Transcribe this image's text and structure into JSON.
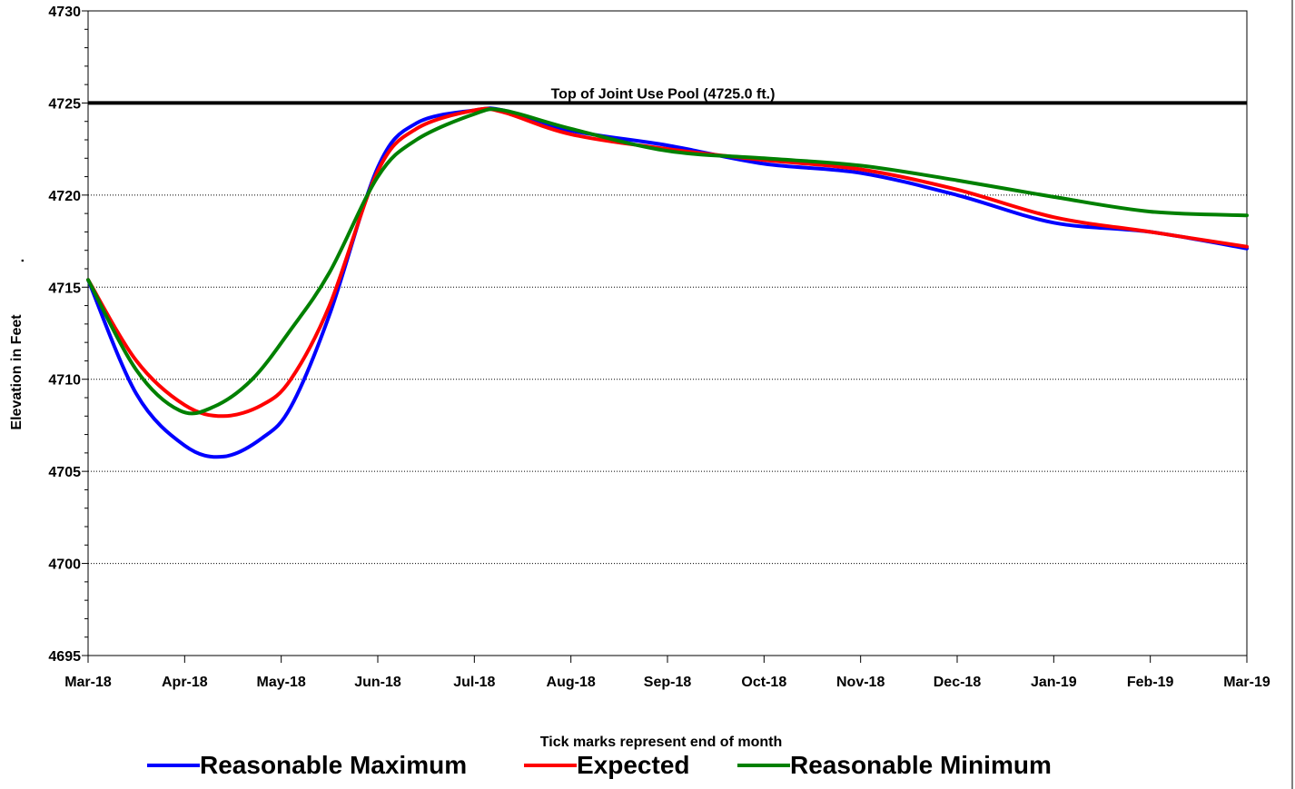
{
  "chart_data": {
    "type": "line",
    "title": "",
    "xlabel": "Tick marks represent end of month",
    "ylabel": "Elevation in Feet",
    "ylim": [
      4695,
      4730
    ],
    "yticks": [
      4695,
      4700,
      4705,
      4710,
      4715,
      4720,
      4725,
      4730
    ],
    "x_categories": [
      "Mar-18",
      "Apr-18",
      "May-18",
      "Jun-18",
      "Jul-18",
      "Aug-18",
      "Sep-18",
      "Oct-18",
      "Nov-18",
      "Dec-18",
      "Jan-19",
      "Feb-19",
      "Mar-19"
    ],
    "grid": "horizontal dotted",
    "legend_position": "bottom",
    "reference_line": {
      "value": 4725,
      "label": "Top of Joint Use Pool (4725.0 ft.)",
      "color": "#000000"
    },
    "series": [
      {
        "name": "Reasonable Maximum",
        "color": "#0000ff",
        "points": [
          [
            0,
            4715.4
          ],
          [
            0.5,
            4709.2
          ],
          [
            1,
            4706.4
          ],
          [
            1.4,
            4705.8
          ],
          [
            1.8,
            4706.8
          ],
          [
            2.1,
            4708.5
          ],
          [
            2.5,
            4713.5
          ],
          [
            3,
            4721.5
          ],
          [
            3.4,
            4723.9
          ],
          [
            4,
            4724.6
          ],
          [
            4.3,
            4724.6
          ],
          [
            5,
            4723.5
          ],
          [
            6,
            4722.7
          ],
          [
            7,
            4721.7
          ],
          [
            8,
            4721.2
          ],
          [
            9,
            4720.0
          ],
          [
            10,
            4718.5
          ],
          [
            11,
            4718.0
          ],
          [
            12,
            4717.1
          ]
        ]
      },
      {
        "name": "Expected",
        "color": "#ff0000",
        "points": [
          [
            0,
            4715.4
          ],
          [
            0.5,
            4711.0
          ],
          [
            1,
            4708.6
          ],
          [
            1.4,
            4708.0
          ],
          [
            1.8,
            4708.6
          ],
          [
            2.1,
            4710.0
          ],
          [
            2.5,
            4714.0
          ],
          [
            3,
            4721.3
          ],
          [
            3.4,
            4723.6
          ],
          [
            4,
            4724.6
          ],
          [
            4.3,
            4724.5
          ],
          [
            5,
            4723.3
          ],
          [
            6,
            4722.5
          ],
          [
            7,
            4721.9
          ],
          [
            8,
            4721.4
          ],
          [
            9,
            4720.3
          ],
          [
            10,
            4718.8
          ],
          [
            11,
            4718.0
          ],
          [
            12,
            4717.2
          ]
        ]
      },
      {
        "name": "Reasonable Minimum",
        "color": "#008000",
        "points": [
          [
            0,
            4715.4
          ],
          [
            0.5,
            4710.5
          ],
          [
            0.95,
            4708.3
          ],
          [
            1.3,
            4708.5
          ],
          [
            1.7,
            4710.0
          ],
          [
            2.1,
            4712.7
          ],
          [
            2.5,
            4715.8
          ],
          [
            3,
            4721.0
          ],
          [
            3.4,
            4723.0
          ],
          [
            4,
            4724.4
          ],
          [
            4.3,
            4724.6
          ],
          [
            5,
            4723.6
          ],
          [
            6,
            4722.4
          ],
          [
            7,
            4722.0
          ],
          [
            8,
            4721.6
          ],
          [
            9,
            4720.8
          ],
          [
            10,
            4719.9
          ],
          [
            11,
            4719.1
          ],
          [
            12,
            4718.9
          ]
        ]
      }
    ]
  },
  "y_axis_marker": "."
}
